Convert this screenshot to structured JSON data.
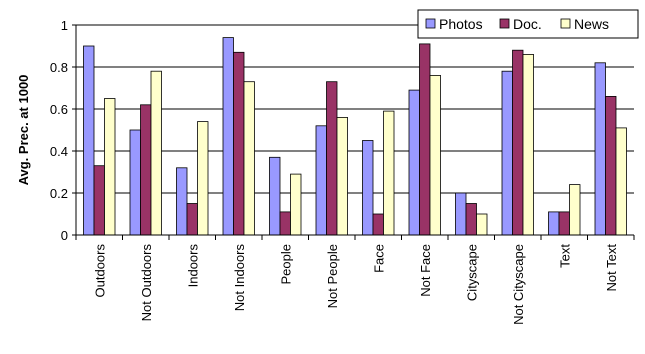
{
  "chart_data": {
    "type": "bar",
    "categories": [
      "Outdoors",
      "Not Outdoors",
      "Indoors",
      "Not Indoors",
      "People",
      "Not People",
      "Face",
      "Not Face",
      "Cityscape",
      "Not Cityscape",
      "Text",
      "Not Text"
    ],
    "series": [
      {
        "name": "Photos",
        "color": "#9999ff",
        "values": [
          0.9,
          0.5,
          0.32,
          0.94,
          0.37,
          0.52,
          0.45,
          0.69,
          0.2,
          0.78,
          0.11,
          0.82
        ]
      },
      {
        "name": "Doc.",
        "color": "#993366",
        "values": [
          0.33,
          0.62,
          0.15,
          0.87,
          0.11,
          0.73,
          0.1,
          0.91,
          0.15,
          0.88,
          0.11,
          0.66
        ]
      },
      {
        "name": "News",
        "color": "#ffffcc",
        "values": [
          0.65,
          0.78,
          0.54,
          0.73,
          0.29,
          0.56,
          0.59,
          0.76,
          0.1,
          0.86,
          0.24,
          0.51
        ]
      }
    ],
    "title": "",
    "xlabel": "",
    "ylabel": "Avg. Prec. at 1000",
    "ylim": [
      0,
      1
    ],
    "yticks": [
      "0",
      "0.2",
      "0.4",
      "0.6",
      "0.8",
      "1"
    ],
    "grid": true,
    "legend_position": "top-right"
  }
}
